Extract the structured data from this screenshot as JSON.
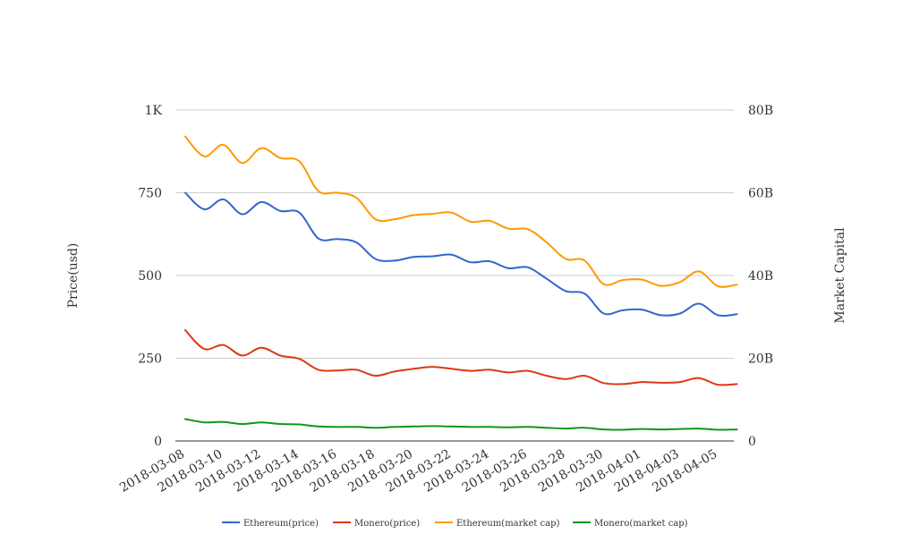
{
  "chart_data": {
    "type": "line",
    "title": "",
    "x_labels": [
      "2018-03-08",
      "2018-03-10",
      "2018-03-12",
      "2018-03-14",
      "2018-03-16",
      "2018-03-18",
      "2018-03-20",
      "2018-03-22",
      "2018-03-24",
      "2018-03-26",
      "2018-03-28",
      "2018-03-30",
      "2018-04-01",
      "2018-04-03",
      "2018-04-05"
    ],
    "x_start": "2018-03-08",
    "x_end": "2018-04-05",
    "y_left": {
      "label": "Price(usd)",
      "ticks": [
        "0",
        "250",
        "500",
        "750",
        "1K"
      ],
      "ylim": [
        0,
        1000
      ]
    },
    "y_right": {
      "label": "Market Capital",
      "ticks": [
        "0",
        "20B",
        "40B",
        "60B",
        "80B"
      ],
      "ylim": [
        0,
        80000000000
      ]
    },
    "grid": true,
    "legend_position": "bottom",
    "series": [
      {
        "name": "Ethereum(price)",
        "axis": "left",
        "color": "#3366cc",
        "points": [
          [
            "2018-03-08",
            750
          ],
          [
            "2018-03-09",
            700
          ],
          [
            "2018-03-10",
            730
          ],
          [
            "2018-03-11",
            685
          ],
          [
            "2018-03-12",
            722
          ],
          [
            "2018-03-13",
            695
          ],
          [
            "2018-03-14",
            690
          ],
          [
            "2018-03-15",
            612
          ],
          [
            "2018-03-16",
            610
          ],
          [
            "2018-03-17",
            600
          ],
          [
            "2018-03-18",
            550
          ],
          [
            "2018-03-19",
            545
          ],
          [
            "2018-03-20",
            556
          ],
          [
            "2018-03-21",
            558
          ],
          [
            "2018-03-22",
            563
          ],
          [
            "2018-03-23",
            540
          ],
          [
            "2018-03-24",
            543
          ],
          [
            "2018-03-25",
            522
          ],
          [
            "2018-03-26",
            525
          ],
          [
            "2018-03-27",
            490
          ],
          [
            "2018-03-28",
            453
          ],
          [
            "2018-03-29",
            445
          ],
          [
            "2018-03-30",
            385
          ],
          [
            "2018-03-31",
            395
          ],
          [
            "2018-04-01",
            397
          ],
          [
            "2018-04-02",
            380
          ],
          [
            "2018-04-03",
            385
          ],
          [
            "2018-04-04",
            415
          ],
          [
            "2018-04-05",
            380
          ],
          [
            "2018-04-06",
            383
          ]
        ]
      },
      {
        "name": "Monero(price)",
        "axis": "left",
        "color": "#dc3912",
        "points": [
          [
            "2018-03-08",
            335
          ],
          [
            "2018-03-09",
            278
          ],
          [
            "2018-03-10",
            290
          ],
          [
            "2018-03-11",
            258
          ],
          [
            "2018-03-12",
            282
          ],
          [
            "2018-03-13",
            258
          ],
          [
            "2018-03-14",
            248
          ],
          [
            "2018-03-15",
            215
          ],
          [
            "2018-03-16",
            213
          ],
          [
            "2018-03-17",
            215
          ],
          [
            "2018-03-18",
            197
          ],
          [
            "2018-03-19",
            210
          ],
          [
            "2018-03-20",
            218
          ],
          [
            "2018-03-21",
            224
          ],
          [
            "2018-03-22",
            218
          ],
          [
            "2018-03-23",
            212
          ],
          [
            "2018-03-24",
            215
          ],
          [
            "2018-03-25",
            207
          ],
          [
            "2018-03-26",
            212
          ],
          [
            "2018-03-27",
            197
          ],
          [
            "2018-03-28",
            187
          ],
          [
            "2018-03-29",
            197
          ],
          [
            "2018-03-30",
            175
          ],
          [
            "2018-03-31",
            172
          ],
          [
            "2018-04-01",
            178
          ],
          [
            "2018-04-02",
            176
          ],
          [
            "2018-04-03",
            178
          ],
          [
            "2018-04-04",
            190
          ],
          [
            "2018-04-05",
            170
          ],
          [
            "2018-04-06",
            172
          ]
        ]
      },
      {
        "name": "Ethereum(market cap)",
        "axis": "right",
        "color": "#ff9900",
        "points": [
          [
            "2018-03-08",
            73600000000
          ],
          [
            "2018-03-09",
            68800000000
          ],
          [
            "2018-03-10",
            71600000000
          ],
          [
            "2018-03-11",
            67200000000
          ],
          [
            "2018-03-12",
            70800000000
          ],
          [
            "2018-03-13",
            68400000000
          ],
          [
            "2018-03-14",
            67600000000
          ],
          [
            "2018-03-15",
            60400000000
          ],
          [
            "2018-03-16",
            60000000000
          ],
          [
            "2018-03-17",
            58800000000
          ],
          [
            "2018-03-18",
            53600000000
          ],
          [
            "2018-03-19",
            53600000000
          ],
          [
            "2018-03-20",
            54600000000
          ],
          [
            "2018-03-21",
            54900000000
          ],
          [
            "2018-03-22",
            55200000000
          ],
          [
            "2018-03-23",
            53000000000
          ],
          [
            "2018-03-24",
            53200000000
          ],
          [
            "2018-03-25",
            51300000000
          ],
          [
            "2018-03-26",
            51200000000
          ],
          [
            "2018-03-27",
            48000000000
          ],
          [
            "2018-03-28",
            44000000000
          ],
          [
            "2018-03-29",
            43600000000
          ],
          [
            "2018-03-30",
            37900000000
          ],
          [
            "2018-03-31",
            38900000000
          ],
          [
            "2018-04-01",
            39000000000
          ],
          [
            "2018-04-02",
            37500000000
          ],
          [
            "2018-04-03",
            38400000000
          ],
          [
            "2018-04-04",
            41000000000
          ],
          [
            "2018-04-05",
            37400000000
          ],
          [
            "2018-04-06",
            37800000000
          ]
        ]
      },
      {
        "name": "Monero(market cap)",
        "axis": "right",
        "color": "#109618",
        "points": [
          [
            "2018-03-08",
            5300000000
          ],
          [
            "2018-03-09",
            4500000000
          ],
          [
            "2018-03-10",
            4600000000
          ],
          [
            "2018-03-11",
            4100000000
          ],
          [
            "2018-03-12",
            4500000000
          ],
          [
            "2018-03-13",
            4100000000
          ],
          [
            "2018-03-14",
            4000000000
          ],
          [
            "2018-03-15",
            3500000000
          ],
          [
            "2018-03-16",
            3400000000
          ],
          [
            "2018-03-17",
            3400000000
          ],
          [
            "2018-03-18",
            3200000000
          ],
          [
            "2018-03-19",
            3400000000
          ],
          [
            "2018-03-20",
            3500000000
          ],
          [
            "2018-03-21",
            3600000000
          ],
          [
            "2018-03-22",
            3500000000
          ],
          [
            "2018-03-23",
            3400000000
          ],
          [
            "2018-03-24",
            3400000000
          ],
          [
            "2018-03-25",
            3300000000
          ],
          [
            "2018-03-26",
            3400000000
          ],
          [
            "2018-03-27",
            3200000000
          ],
          [
            "2018-03-28",
            3000000000
          ],
          [
            "2018-03-29",
            3200000000
          ],
          [
            "2018-03-30",
            2800000000
          ],
          [
            "2018-03-31",
            2700000000
          ],
          [
            "2018-04-01",
            2900000000
          ],
          [
            "2018-04-02",
            2800000000
          ],
          [
            "2018-04-03",
            2900000000
          ],
          [
            "2018-04-04",
            3000000000
          ],
          [
            "2018-04-05",
            2700000000
          ],
          [
            "2018-04-06",
            2800000000
          ]
        ]
      }
    ]
  }
}
